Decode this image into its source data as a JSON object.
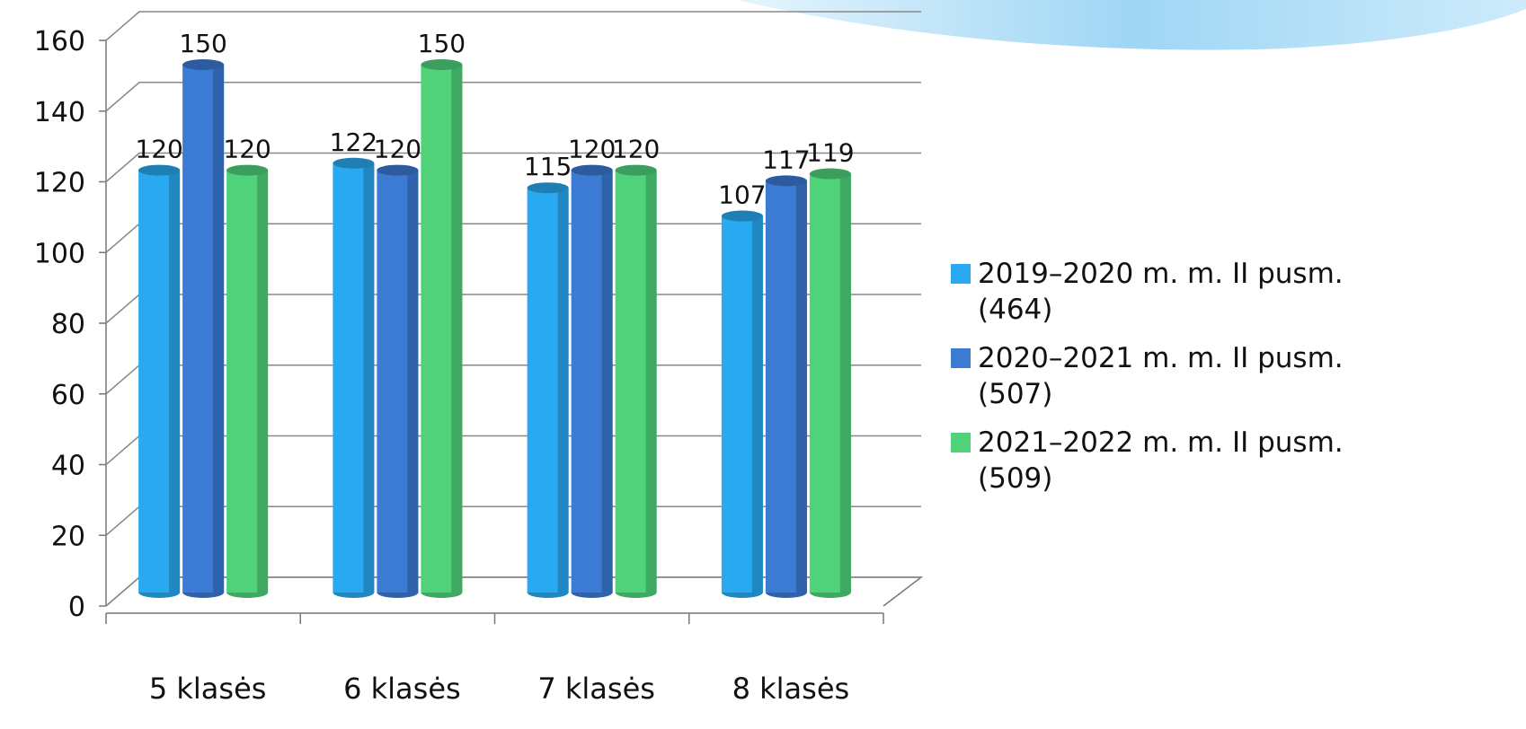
{
  "chart_data": {
    "type": "bar",
    "categories": [
      "5 klasės",
      "6 klasės",
      "7 klasės",
      "8 klasės"
    ],
    "series": [
      {
        "name": "2019–2020 m. m. II pusm. (464)",
        "color": "#29a9f0",
        "values": [
          120,
          122,
          115,
          107
        ]
      },
      {
        "name": "2020–2021 m. m. II pusm. (507)",
        "color": "#3b7bd4",
        "values": [
          150,
          120,
          120,
          117
        ]
      },
      {
        "name": "2021–2022 m. m. II pusm. (509)",
        "color": "#4fd27a",
        "values": [
          120,
          150,
          120,
          119
        ]
      }
    ],
    "ylim": [
      0,
      160
    ],
    "yticks": [
      0,
      20,
      40,
      60,
      80,
      100,
      120,
      140,
      160
    ],
    "grid": true,
    "legend": "right"
  }
}
